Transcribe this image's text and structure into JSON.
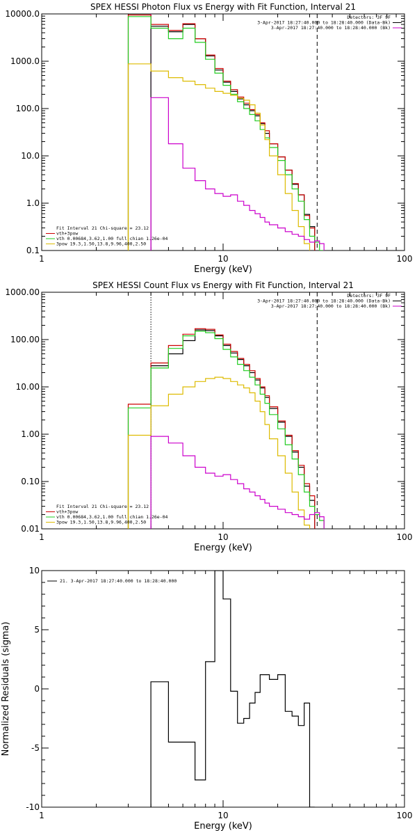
{
  "chart_data": [
    {
      "type": "line",
      "title": "SPEX HESSI Photon Flux vs Energy with Fit Function, Interval 21",
      "xlabel": "Energy (keV)",
      "ylabel": "",
      "x_scale": "log",
      "y_scale": "log",
      "xlim": [
        1,
        100
      ],
      "ylim": [
        0.1,
        10000
      ],
      "xticks": [
        "1",
        "10",
        "100"
      ],
      "yticks": [
        "10000.0",
        "1000.0",
        "100.0",
        "10.0",
        "1.0",
        "0.1"
      ],
      "grid": false,
      "vlines": [
        {
          "x": 4,
          "style": "solid",
          "color": "#cc00cc"
        },
        {
          "x": 33,
          "style": "dashed",
          "color": "#000000"
        }
      ],
      "legend_top_right": [
        "Detectors: 3F 9F",
        "3-Apr-2017 18:27:40.000 to 18:28:40.000 (Data-Bk)",
        "3-Apr-2017 18:27:40.000 to 18:28:40.000 (Bk)"
      ],
      "legend_top_colors": [
        "#000000",
        "#000000",
        "#cc00cc"
      ],
      "legend_bottom_left": [
        "Fit Interval 21   Chi-square = 23.12",
        "vth+3pow",
        "vth 0.00684,3.62,1.00  full chian 1.26e-04",
        "3pow 19.3,1.50,13.8,9.96,400,2.50"
      ],
      "legend_bottom_colors": [
        "#000000",
        "#cc0000",
        "#22cc22",
        "#ddbb00"
      ],
      "series": [
        {
          "name": "Data-Bk",
          "color": "#000000",
          "edges": [
            3,
            4,
            5,
            6,
            7,
            8,
            9,
            10,
            11,
            12,
            13,
            14,
            15,
            16,
            17,
            18,
            20,
            22,
            24,
            26,
            28,
            30,
            32,
            34,
            36,
            38
          ],
          "values": [
            null,
            5500,
            4200,
            6000,
            3000,
            1300,
            650,
            360,
            230,
            160,
            120,
            90,
            70,
            48,
            30,
            18,
            9.5,
            5,
            2.5,
            1.5,
            0.58,
            0.32,
            null,
            null,
            null
          ]
        },
        {
          "name": "vth+3pow",
          "color": "#cc0000",
          "edges": [
            3,
            4,
            5,
            6,
            7,
            8,
            9,
            10,
            11,
            12,
            13,
            14,
            15,
            16,
            17,
            18,
            20,
            22,
            24,
            26,
            28,
            30,
            32,
            34,
            36,
            38
          ],
          "values": [
            9500,
            6000,
            4500,
            6200,
            3000,
            1350,
            700,
            380,
            250,
            175,
            130,
            95,
            75,
            50,
            34,
            18,
            9.5,
            5,
            2.6,
            1.5,
            0.55,
            0.3,
            null,
            null,
            null
          ]
        },
        {
          "name": "vth",
          "color": "#22cc22",
          "edges": [
            3,
            4,
            5,
            6,
            7,
            8,
            9,
            10,
            11,
            12,
            13,
            14,
            15,
            16,
            17,
            18,
            20,
            22,
            24,
            26,
            28,
            30,
            32,
            34,
            36,
            38
          ],
          "values": [
            8800,
            5000,
            3000,
            5000,
            2500,
            1100,
            560,
            310,
            200,
            140,
            100,
            75,
            55,
            36,
            24,
            15,
            8,
            4,
            2,
            1.1,
            0.45,
            0.2,
            0.15,
            0.1,
            null
          ]
        },
        {
          "name": "3pow",
          "color": "#ddbb00",
          "edges": [
            3,
            4,
            5,
            6,
            7,
            8,
            9,
            10,
            11,
            12,
            13,
            14,
            15,
            16,
            17,
            18,
            20,
            22,
            24,
            26,
            28,
            30,
            32,
            34,
            36,
            38
          ],
          "values": [
            880,
            620,
            450,
            380,
            320,
            270,
            230,
            210,
            190,
            165,
            150,
            120,
            80,
            45,
            22,
            10,
            4,
            1.6,
            0.7,
            0.32,
            0.14,
            null,
            null,
            null,
            null
          ]
        },
        {
          "name": "Bk",
          "color": "#cc00cc",
          "edges": [
            3,
            4,
            5,
            6,
            7,
            8,
            9,
            10,
            11,
            12,
            13,
            14,
            15,
            16,
            17,
            18,
            20,
            22,
            24,
            26,
            28,
            30,
            32,
            34,
            36,
            38
          ],
          "values": [
            null,
            170,
            18,
            5.5,
            3,
            2,
            1.6,
            1.4,
            1.5,
            1.1,
            0.9,
            0.7,
            0.6,
            0.5,
            0.4,
            0.35,
            0.3,
            0.25,
            0.22,
            0.2,
            0.17,
            0.15,
            0.16,
            0.14,
            null
          ]
        }
      ]
    },
    {
      "type": "line",
      "title": "SPEX HESSI Count Flux vs Energy with Fit Function, Interval 21",
      "xlabel": "Energy (keV)",
      "ylabel": "",
      "x_scale": "log",
      "y_scale": "log",
      "xlim": [
        1,
        100
      ],
      "ylim": [
        0.01,
        1000
      ],
      "xticks": [
        "1",
        "10",
        "100"
      ],
      "yticks": [
        "1000.00",
        "100.00",
        "10.00",
        "1.00",
        "0.10",
        "0.01"
      ],
      "grid": false,
      "vlines": [
        {
          "x": 4,
          "style": "dotted",
          "color": "#000000"
        },
        {
          "x": 33,
          "style": "dashed",
          "color": "#000000"
        }
      ],
      "legend_top_right": [
        "Detectors: 3F 9F",
        "3-Apr-2017 18:27:40.000 to 18:28:40.000 (Data-Bk)",
        "3-Apr-2017 18:27:40.000 to 18:28:40.000 (Bk)"
      ],
      "legend_top_colors": [
        "#000000",
        "#000000",
        "#cc00cc"
      ],
      "legend_bottom_left": [
        "Fit Interval 21   Chi-square = 23.12",
        "vth+3pow",
        "vth 0.00684,3.62,1.00  full chian 1.26e-04",
        "3pow 19.3,1.50,13.8,9.96,400,2.50"
      ],
      "legend_bottom_colors": [
        "#000000",
        "#cc0000",
        "#22cc22",
        "#ddbb00"
      ],
      "series": [
        {
          "name": "Data-Bk",
          "color": "#000000",
          "edges": [
            3,
            4,
            5,
            6,
            7,
            8,
            9,
            10,
            11,
            12,
            13,
            14,
            15,
            16,
            17,
            18,
            20,
            22,
            24,
            26,
            28,
            30,
            32,
            34,
            36,
            38
          ],
          "values": [
            null,
            28,
            50,
            95,
            160,
            155,
            120,
            75,
            52,
            38,
            28,
            20,
            14,
            9.5,
            6,
            3.5,
            1.8,
            0.9,
            0.42,
            0.2,
            0.08,
            0.04,
            null,
            null,
            null
          ]
        },
        {
          "name": "vth+3pow",
          "color": "#cc0000",
          "edges": [
            3,
            4,
            5,
            6,
            7,
            8,
            9,
            10,
            11,
            12,
            13,
            14,
            15,
            16,
            17,
            18,
            20,
            22,
            24,
            26,
            28,
            30,
            32,
            34,
            36,
            38
          ],
          "values": [
            4.3,
            32,
            75,
            130,
            170,
            165,
            125,
            80,
            56,
            40,
            30,
            22,
            15,
            10,
            6.5,
            3.8,
            1.9,
            0.95,
            0.45,
            0.22,
            0.09,
            0.05,
            null,
            null,
            null
          ]
        },
        {
          "name": "vth",
          "color": "#22cc22",
          "edges": [
            3,
            4,
            5,
            6,
            7,
            8,
            9,
            10,
            11,
            12,
            13,
            14,
            15,
            16,
            17,
            18,
            20,
            22,
            24,
            26,
            28,
            30,
            32,
            34,
            36,
            38
          ],
          "values": [
            3.6,
            25,
            65,
            120,
            150,
            140,
            105,
            62,
            43,
            30,
            22,
            16,
            11,
            7,
            4.5,
            2.6,
            1.3,
            0.6,
            0.3,
            0.14,
            0.06,
            0.03,
            0.02,
            0.015,
            null
          ]
        },
        {
          "name": "3pow",
          "color": "#ddbb00",
          "edges": [
            3,
            4,
            5,
            6,
            7,
            8,
            9,
            10,
            11,
            12,
            13,
            14,
            15,
            16,
            17,
            18,
            20,
            22,
            24,
            26,
            28,
            30,
            32,
            34,
            36,
            38
          ],
          "values": [
            0.95,
            4,
            7,
            10,
            13,
            15,
            16,
            15,
            13,
            11,
            9.5,
            7.5,
            5,
            3,
            1.6,
            0.8,
            0.35,
            0.15,
            0.06,
            0.025,
            0.012,
            null,
            null,
            null,
            null
          ]
        },
        {
          "name": "Bk",
          "color": "#cc00cc",
          "edges": [
            3,
            4,
            5,
            6,
            7,
            8,
            9,
            10,
            11,
            12,
            13,
            14,
            15,
            16,
            17,
            18,
            20,
            22,
            24,
            26,
            28,
            30,
            32,
            34,
            36,
            38
          ],
          "values": [
            null,
            0.9,
            0.65,
            0.35,
            0.2,
            0.15,
            0.13,
            0.14,
            0.11,
            0.09,
            0.07,
            0.06,
            0.05,
            0.042,
            0.035,
            0.03,
            0.026,
            0.022,
            0.02,
            0.018,
            0.016,
            0.02,
            0.022,
            0.018,
            null
          ]
        }
      ]
    },
    {
      "type": "line",
      "title": "",
      "xlabel": "Energy (keV)",
      "ylabel": "Normalized Residuals (sigma)",
      "x_scale": "log",
      "y_scale": "linear",
      "xlim": [
        1,
        100
      ],
      "ylim": [
        -10,
        10
      ],
      "xticks": [
        "1",
        "10",
        "100"
      ],
      "yticks": [
        "10",
        "5",
        "0",
        "-5",
        "-10"
      ],
      "grid": false,
      "legend": [
        "21.  3-Apr-2017 18:27:40.000 to 18:28:40.000"
      ],
      "series": [
        {
          "name": "21.  3-Apr-2017 18:27:40.000 to 18:28:40.000",
          "color": "#000000",
          "edges": [
            4,
            5,
            6,
            7,
            8,
            9,
            10,
            11,
            12,
            13,
            14,
            15,
            16,
            17,
            18,
            20,
            22,
            24,
            26,
            28,
            30,
            32,
            33.5
          ],
          "values": [
            0.6,
            -4.5,
            -4.5,
            -7.7,
            2.3,
            10,
            7.6,
            -0.2,
            -2.9,
            -2.5,
            -1.2,
            -0.3,
            1.2,
            1.2,
            0.8,
            1.2,
            -1.9,
            -2.3,
            -3.1,
            -1.2,
            -10,
            null
          ]
        }
      ]
    }
  ]
}
